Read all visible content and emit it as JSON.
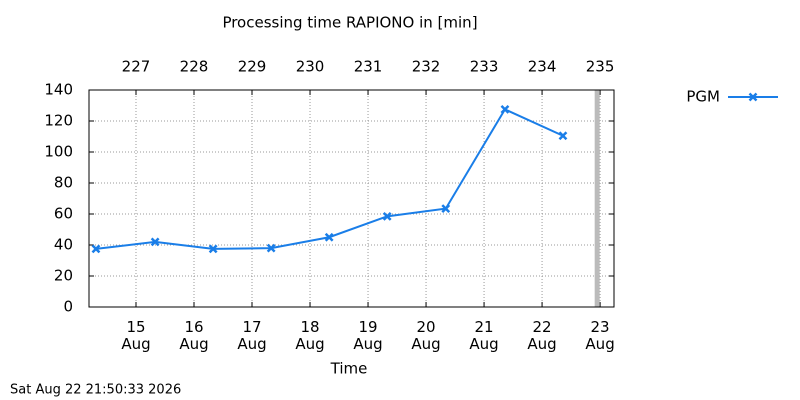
{
  "chart_data": {
    "type": "line",
    "title": "Processing time RAPIONO in [min]",
    "xlabel": "Time",
    "footer": "Sat Aug 22 21:50:33 2026",
    "x": [
      226.31,
      227.33,
      228.33,
      229.33,
      230.33,
      231.33,
      232.34,
      233.36,
      234.36
    ],
    "series": [
      {
        "name": "PGM",
        "color": "#1a7ee8",
        "values": [
          37.5,
          42,
          37.5,
          38,
          45,
          58.5,
          63.5,
          127.5,
          110.5
        ]
      }
    ],
    "xlim": [
      226.19,
      235.24
    ],
    "xticks": [
      {
        "value": 227,
        "label": "15 Aug"
      },
      {
        "value": 228,
        "label": "16 Aug"
      },
      {
        "value": 229,
        "label": "17 Aug"
      },
      {
        "value": 230,
        "label": "18 Aug"
      },
      {
        "value": 231,
        "label": "19 Aug"
      },
      {
        "value": 232,
        "label": "20 Aug"
      },
      {
        "value": 233,
        "label": "21 Aug"
      },
      {
        "value": 234,
        "label": "22 Aug"
      },
      {
        "value": 235,
        "label": "23 Aug"
      }
    ],
    "x2ticks": [
      227,
      228,
      229,
      230,
      231,
      232,
      233,
      234,
      235
    ],
    "ylim": [
      0,
      140
    ],
    "yticks": [
      0,
      20,
      40,
      60,
      80,
      100,
      120,
      140
    ],
    "now_line": 234.95,
    "now_line_color": "#bbbbbb",
    "grid": true,
    "legend": "right"
  }
}
